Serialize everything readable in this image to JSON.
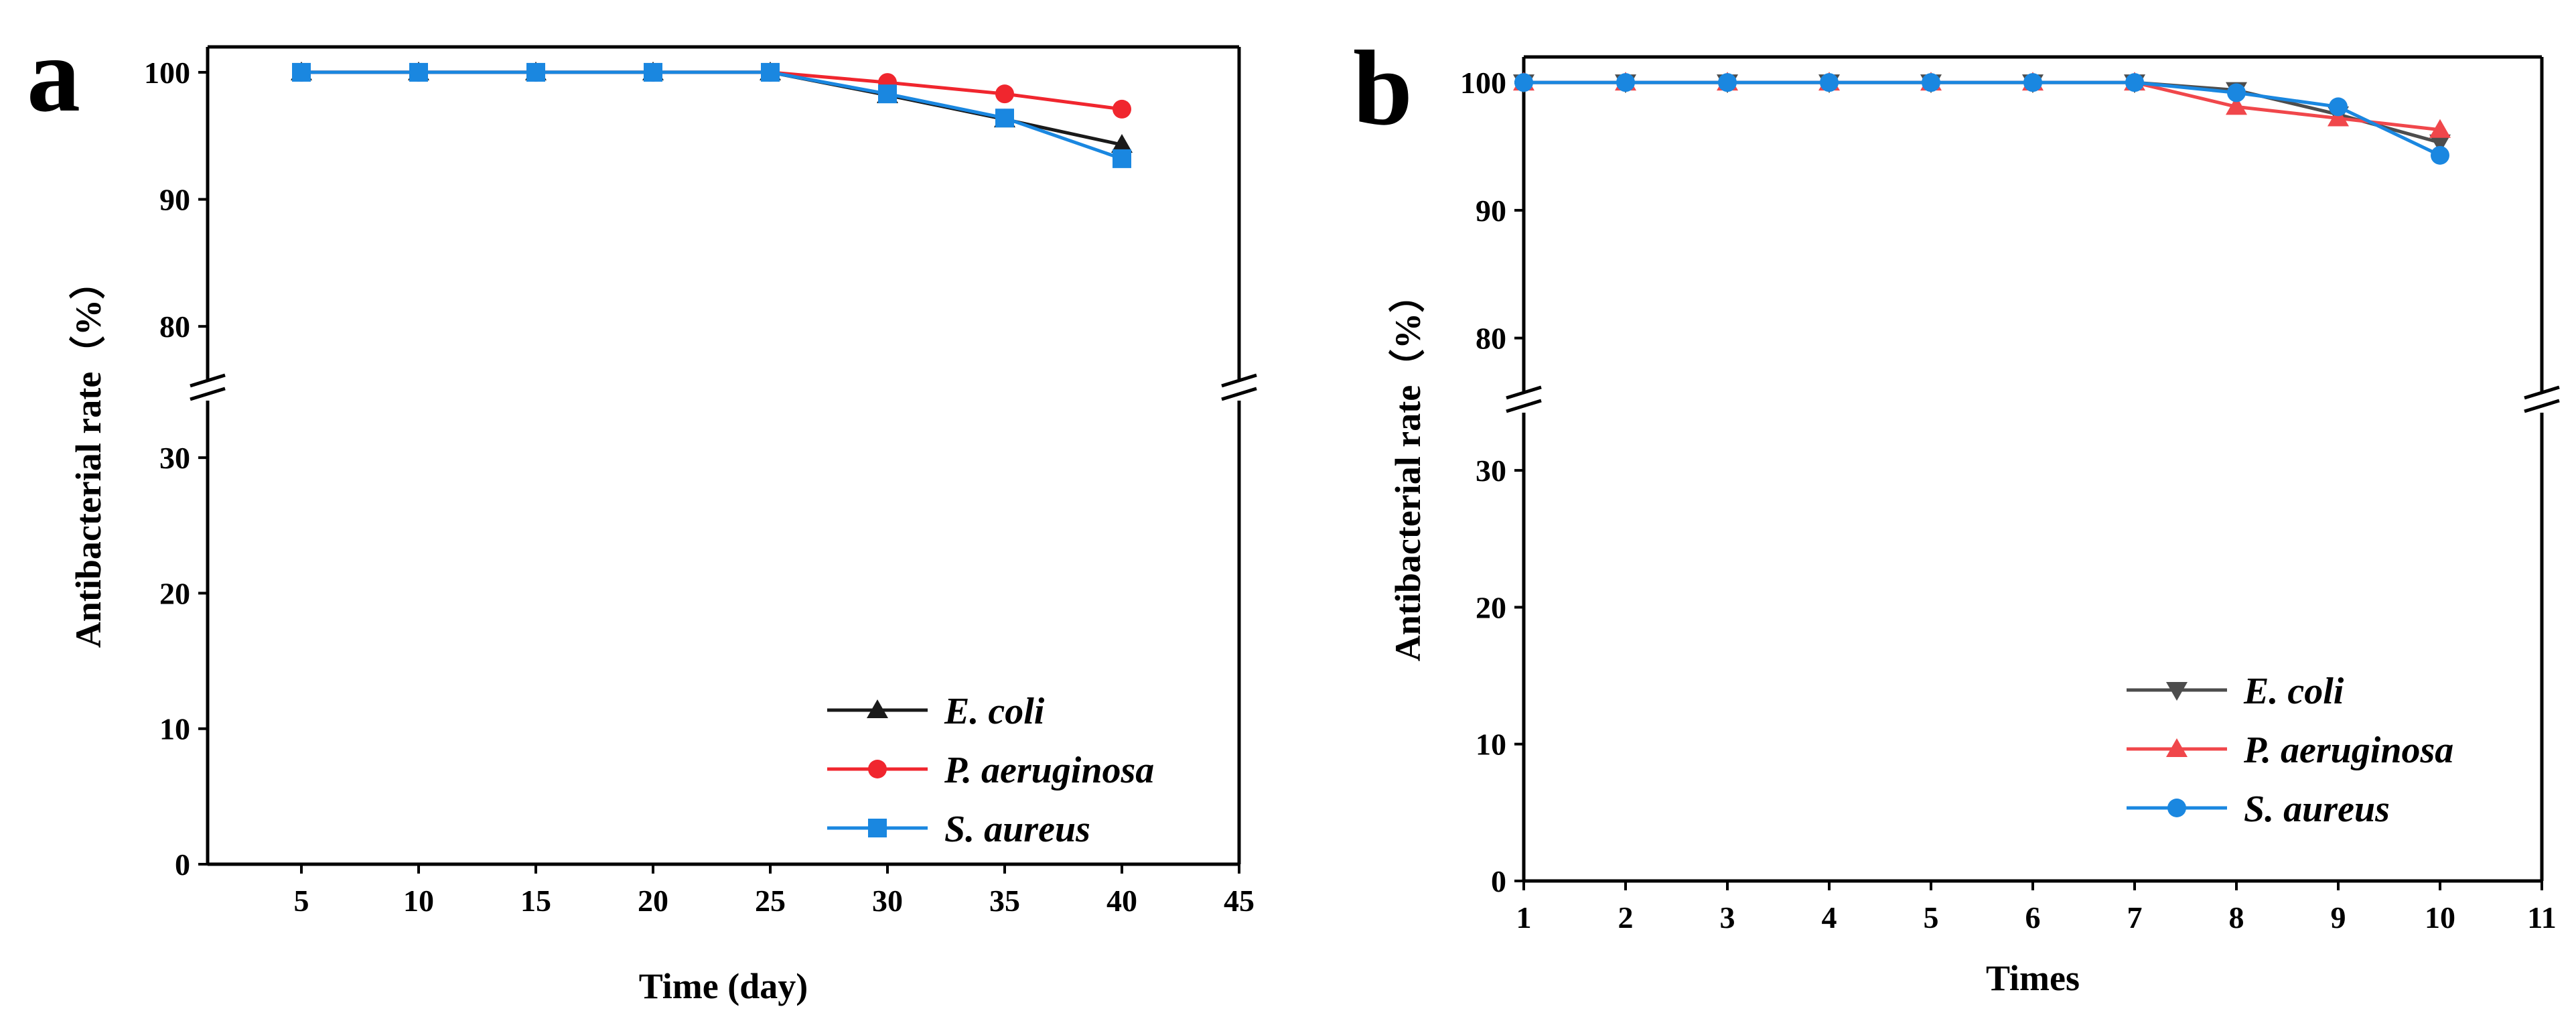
{
  "chart_data": [
    {
      "type": "line",
      "panel_label": "a",
      "xlabel": "Time (day)",
      "ylabel": "Antibacterial rate（%）",
      "xlim": [
        1,
        45
      ],
      "x_ticks": [
        5,
        10,
        15,
        20,
        25,
        30,
        35,
        40,
        45
      ],
      "y_ticks_lower": [
        0,
        10,
        20,
        30
      ],
      "y_ticks_upper": [
        80,
        90,
        100
      ],
      "y_break": [
        35,
        75
      ],
      "x": [
        5,
        10,
        15,
        20,
        25,
        30,
        35,
        40
      ],
      "series": [
        {
          "name": "E. coli",
          "color": "#1a1a1a",
          "marker": "triangle-up",
          "values": [
            100,
            100,
            100,
            100,
            100,
            98.2,
            96.3,
            94.3
          ]
        },
        {
          "name": "P. aeruginosa",
          "color": "#f0262e",
          "marker": "circle",
          "values": [
            100,
            100,
            100,
            100,
            100,
            99.2,
            98.3,
            97.1
          ]
        },
        {
          "name": "S. aureus",
          "color": "#1a87e0",
          "marker": "square",
          "values": [
            100,
            100,
            100,
            100,
            100,
            98.3,
            96.4,
            93.2
          ]
        }
      ],
      "legend_position": "bottom-right"
    },
    {
      "type": "line",
      "panel_label": "b",
      "xlabel": "Times",
      "ylabel": "Antibacterial rate（%）",
      "xlim": [
        1,
        11
      ],
      "x_ticks": [
        1,
        2,
        3,
        4,
        5,
        6,
        7,
        8,
        9,
        10,
        11
      ],
      "y_ticks_lower": [
        0,
        10,
        20,
        30
      ],
      "y_ticks_upper": [
        80,
        90,
        100
      ],
      "y_break": [
        35,
        75
      ],
      "x": [
        1,
        2,
        3,
        4,
        5,
        6,
        7,
        8,
        9,
        10
      ],
      "series": [
        {
          "name": "E. coli",
          "color": "#4d4d4d",
          "marker": "triangle-down",
          "values": [
            100,
            100,
            100,
            100,
            100,
            100,
            100,
            99.4,
            97.5,
            95.3
          ]
        },
        {
          "name": "P. aeruginosa",
          "color": "#f0474b",
          "marker": "triangle-up",
          "values": [
            100,
            100,
            100,
            100,
            100,
            100,
            100,
            98.1,
            97.2,
            96.3
          ]
        },
        {
          "name": "S. aureus",
          "color": "#1a87e0",
          "marker": "circle",
          "values": [
            100,
            100,
            100,
            100,
            100,
            100,
            100,
            99.2,
            98.1,
            94.3
          ]
        }
      ],
      "legend_position": "bottom-right"
    }
  ]
}
